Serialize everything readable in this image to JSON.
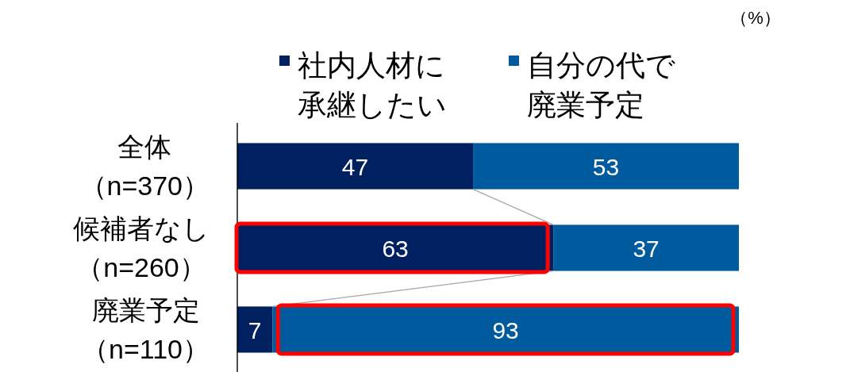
{
  "chart_data": {
    "type": "bar",
    "orientation": "horizontal",
    "stacked": true,
    "data_labels": true,
    "legend": "top",
    "categories": [
      "全体（n=370）",
      "候補者なし（n=260）",
      "廃業予定（n=110）"
    ],
    "series": [
      {
        "name": "社内人材に承継したい",
        "color": "#002060",
        "values": [
          47,
          63,
          7
        ]
      },
      {
        "name": "自分の代で廃業予定",
        "color": "#005a9e",
        "values": [
          53,
          37,
          93
        ]
      }
    ],
    "annotations": [
      "（%）"
    ]
  }
}
